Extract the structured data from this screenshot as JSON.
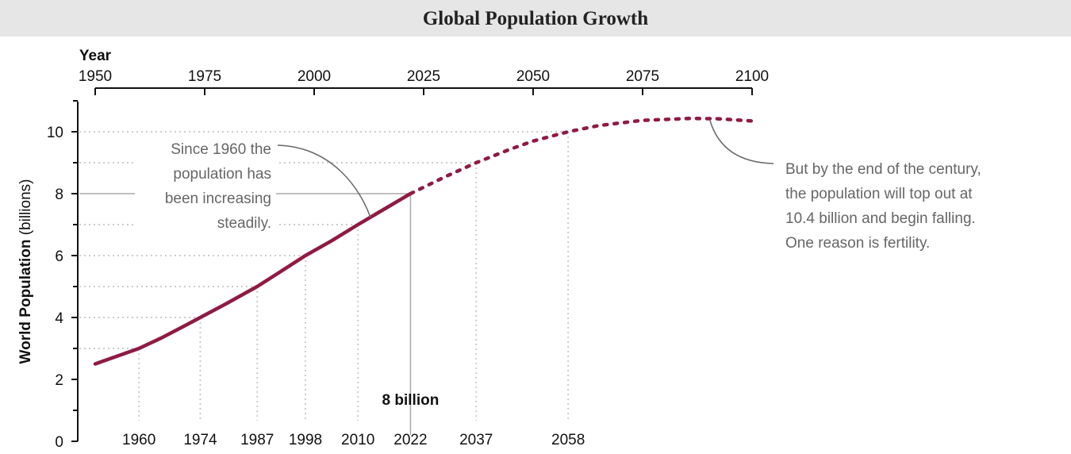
{
  "title": "Global Population Growth",
  "chart_data": {
    "type": "line",
    "title": "Global Population Growth",
    "xlabel": "Year",
    "ylabel": "World Population",
    "ylabel_unit": "(billions)",
    "xlim": [
      1950,
      2100
    ],
    "ylim": [
      0,
      11
    ],
    "x_ticks": [
      "1950",
      "1975",
      "2000",
      "2025",
      "2050",
      "2075",
      "2100"
    ],
    "y_ticks": [
      "0",
      "2",
      "4",
      "6",
      "8",
      "10"
    ],
    "line_color": "#8f1a43",
    "series": [
      {
        "style": "solid",
        "points": [
          [
            1950,
            2.5
          ],
          [
            1955,
            2.75
          ],
          [
            1960,
            3.0
          ],
          [
            1965,
            3.33
          ],
          [
            1970,
            3.7
          ],
          [
            1974,
            4.0
          ],
          [
            1980,
            4.45
          ],
          [
            1987,
            5.0
          ],
          [
            1992,
            5.45
          ],
          [
            1998,
            6.0
          ],
          [
            2004,
            6.48
          ],
          [
            2010,
            7.0
          ],
          [
            2016,
            7.5
          ],
          [
            2022,
            8.0
          ]
        ]
      },
      {
        "style": "dotted",
        "points": [
          [
            2022,
            8.0
          ],
          [
            2030,
            8.55
          ],
          [
            2037,
            9.0
          ],
          [
            2045,
            9.45
          ],
          [
            2050,
            9.7
          ],
          [
            2058,
            10.0
          ],
          [
            2065,
            10.2
          ],
          [
            2075,
            10.37
          ],
          [
            2086,
            10.43
          ],
          [
            2092,
            10.42
          ],
          [
            2100,
            10.35
          ]
        ]
      }
    ],
    "milestones": [
      {
        "year": 1960,
        "value": 3,
        "label": "1960"
      },
      {
        "year": 1974,
        "value": 4,
        "label": "1974"
      },
      {
        "year": 1987,
        "value": 5,
        "label": "1987"
      },
      {
        "year": 1998,
        "value": 6,
        "label": "1998"
      },
      {
        "year": 2010,
        "value": 7,
        "label": "2010"
      },
      {
        "year": 2022,
        "value": 8,
        "label": "2022"
      },
      {
        "year": 2037,
        "value": 9,
        "label": "2037"
      },
      {
        "year": 2058,
        "value": 10,
        "label": "2058"
      }
    ],
    "annotations": {
      "current": "8 billion",
      "left": [
        "Since 1960 the",
        "population has",
        "been increasing",
        "steadily."
      ],
      "right": [
        "But by the end of the century,",
        "the population will top out at",
        "10.4 billion and begin falling.",
        "One reason is fertility."
      ]
    }
  }
}
